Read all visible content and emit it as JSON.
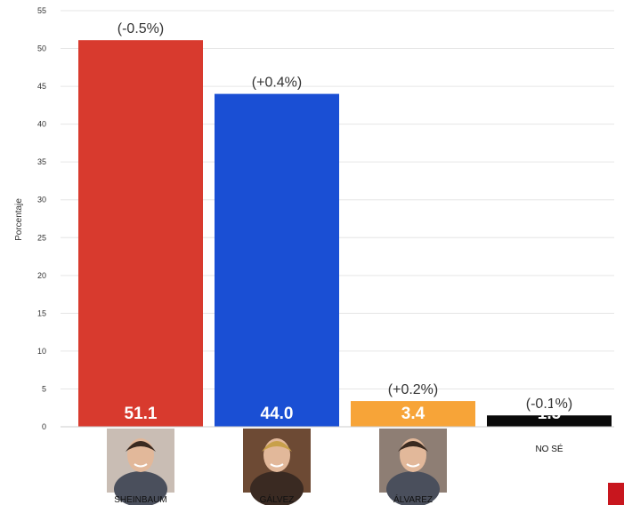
{
  "chart_data": {
    "type": "bar",
    "xlabel": "",
    "ylabel": "Porcentaje",
    "ylim": [
      0,
      55
    ],
    "yticks": [
      "0",
      "5",
      "10",
      "15",
      "20",
      "25",
      "30",
      "35",
      "40",
      "45",
      "50",
      "55"
    ],
    "grid": true,
    "categories": [
      "SHEINBAUM",
      "GÁLVEZ",
      "ÁLVAREZ",
      "NO SÉ"
    ],
    "values": [
      51.1,
      44.0,
      3.4,
      1.5
    ],
    "value_labels": [
      "51.1",
      "44.0",
      "3.4",
      "1.5"
    ],
    "change_labels": [
      "(-0.5%)",
      "(+0.4%)",
      "(+0.2%)",
      "(-0.1%)"
    ],
    "colors": [
      "#d83a2e",
      "#1a4fd4",
      "#f7a438",
      "#0a0a0a"
    ],
    "has_photo": [
      true,
      true,
      true,
      false
    ]
  },
  "corner_mark_color": "#c8161e"
}
